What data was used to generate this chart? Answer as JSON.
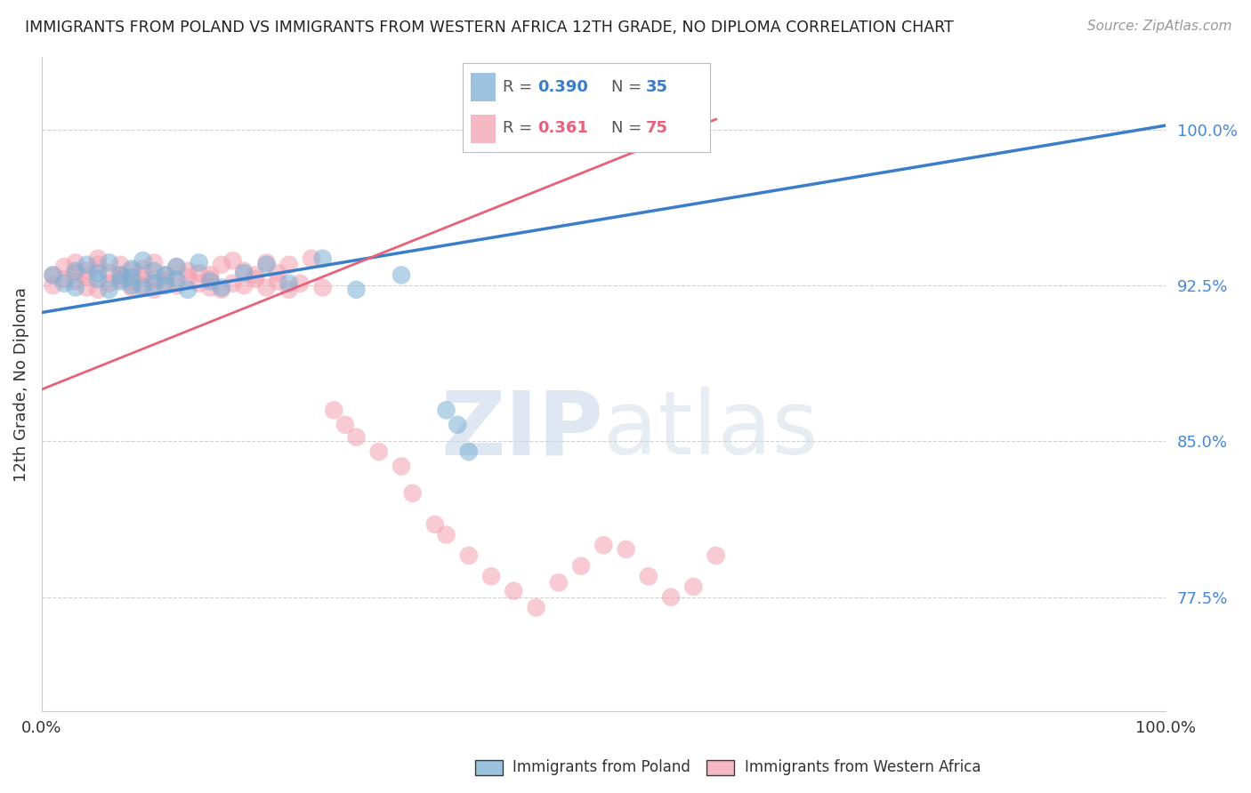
{
  "title": "IMMIGRANTS FROM POLAND VS IMMIGRANTS FROM WESTERN AFRICA 12TH GRADE, NO DIPLOMA CORRELATION CHART",
  "source": "Source: ZipAtlas.com",
  "ylabel_left": "12th Grade, No Diploma",
  "y_ticks": [
    77.5,
    85.0,
    92.5,
    100.0
  ],
  "y_tick_labels": [
    "77.5%",
    "85.0%",
    "92.5%",
    "100.0%"
  ],
  "xlim": [
    0.0,
    100.0
  ],
  "ylim": [
    72.0,
    103.5
  ],
  "legend_blue_r": "0.390",
  "legend_blue_n": "35",
  "legend_pink_r": "0.361",
  "legend_pink_n": "75",
  "color_blue": "#7BAFD4",
  "color_pink": "#F4A0B0",
  "color_blue_line": "#3A7DC9",
  "color_pink_line": "#E8607A",
  "background_color": "#ffffff",
  "grid_color": "#d0d0d0",
  "blue_line_x0": 0.0,
  "blue_line_y0": 91.2,
  "blue_line_x1": 100.0,
  "blue_line_y1": 100.2,
  "pink_line_x0": 0.0,
  "pink_line_y0": 87.5,
  "pink_line_x1": 60.0,
  "pink_line_y1": 100.5,
  "blue_pts_x": [
    1,
    2,
    3,
    3,
    4,
    5,
    5,
    6,
    6,
    7,
    7,
    8,
    8,
    8,
    9,
    9,
    10,
    10,
    11,
    11,
    12,
    12,
    13,
    14,
    15,
    16,
    18,
    20,
    22,
    25,
    28,
    32,
    36,
    37,
    38
  ],
  "blue_pts_y": [
    93.0,
    92.6,
    93.2,
    92.4,
    93.5,
    92.8,
    93.1,
    92.3,
    93.6,
    92.7,
    93.0,
    92.5,
    93.3,
    92.9,
    92.4,
    93.7,
    92.6,
    93.2,
    92.5,
    93.0,
    92.8,
    93.4,
    92.3,
    93.6,
    92.7,
    92.4,
    93.1,
    93.5,
    92.6,
    93.8,
    92.3,
    93.0,
    86.5,
    85.8,
    84.5
  ],
  "pink_pts_x": [
    1,
    1,
    2,
    2,
    3,
    3,
    3,
    4,
    4,
    4,
    5,
    5,
    5,
    6,
    6,
    7,
    7,
    7,
    8,
    8,
    8,
    9,
    9,
    9,
    10,
    10,
    10,
    11,
    11,
    12,
    12,
    13,
    13,
    14,
    14,
    15,
    15,
    15,
    16,
    16,
    17,
    17,
    18,
    18,
    19,
    19,
    20,
    20,
    21,
    21,
    22,
    22,
    23,
    24,
    25,
    26,
    27,
    28,
    30,
    32,
    33,
    35,
    36,
    38,
    40,
    42,
    44,
    46,
    48,
    50,
    52,
    54,
    56,
    58,
    60
  ],
  "pink_pts_y": [
    93.0,
    92.5,
    93.4,
    92.8,
    93.1,
    92.7,
    93.6,
    92.4,
    93.2,
    92.9,
    93.5,
    92.3,
    93.8,
    92.6,
    93.1,
    93.0,
    92.8,
    93.5,
    92.4,
    93.2,
    92.7,
    93.0,
    92.5,
    93.3,
    92.8,
    93.6,
    92.3,
    93.0,
    92.7,
    93.4,
    92.5,
    92.9,
    93.2,
    92.6,
    93.1,
    92.4,
    93.0,
    92.8,
    93.5,
    92.3,
    93.7,
    92.6,
    92.5,
    93.2,
    92.8,
    93.0,
    92.4,
    93.6,
    92.7,
    93.1,
    92.3,
    93.5,
    92.6,
    93.8,
    92.4,
    86.5,
    85.8,
    85.2,
    84.5,
    83.8,
    82.5,
    81.0,
    80.5,
    79.5,
    78.5,
    77.8,
    77.0,
    78.2,
    79.0,
    80.0,
    79.8,
    78.5,
    77.5,
    78.0,
    79.5
  ]
}
